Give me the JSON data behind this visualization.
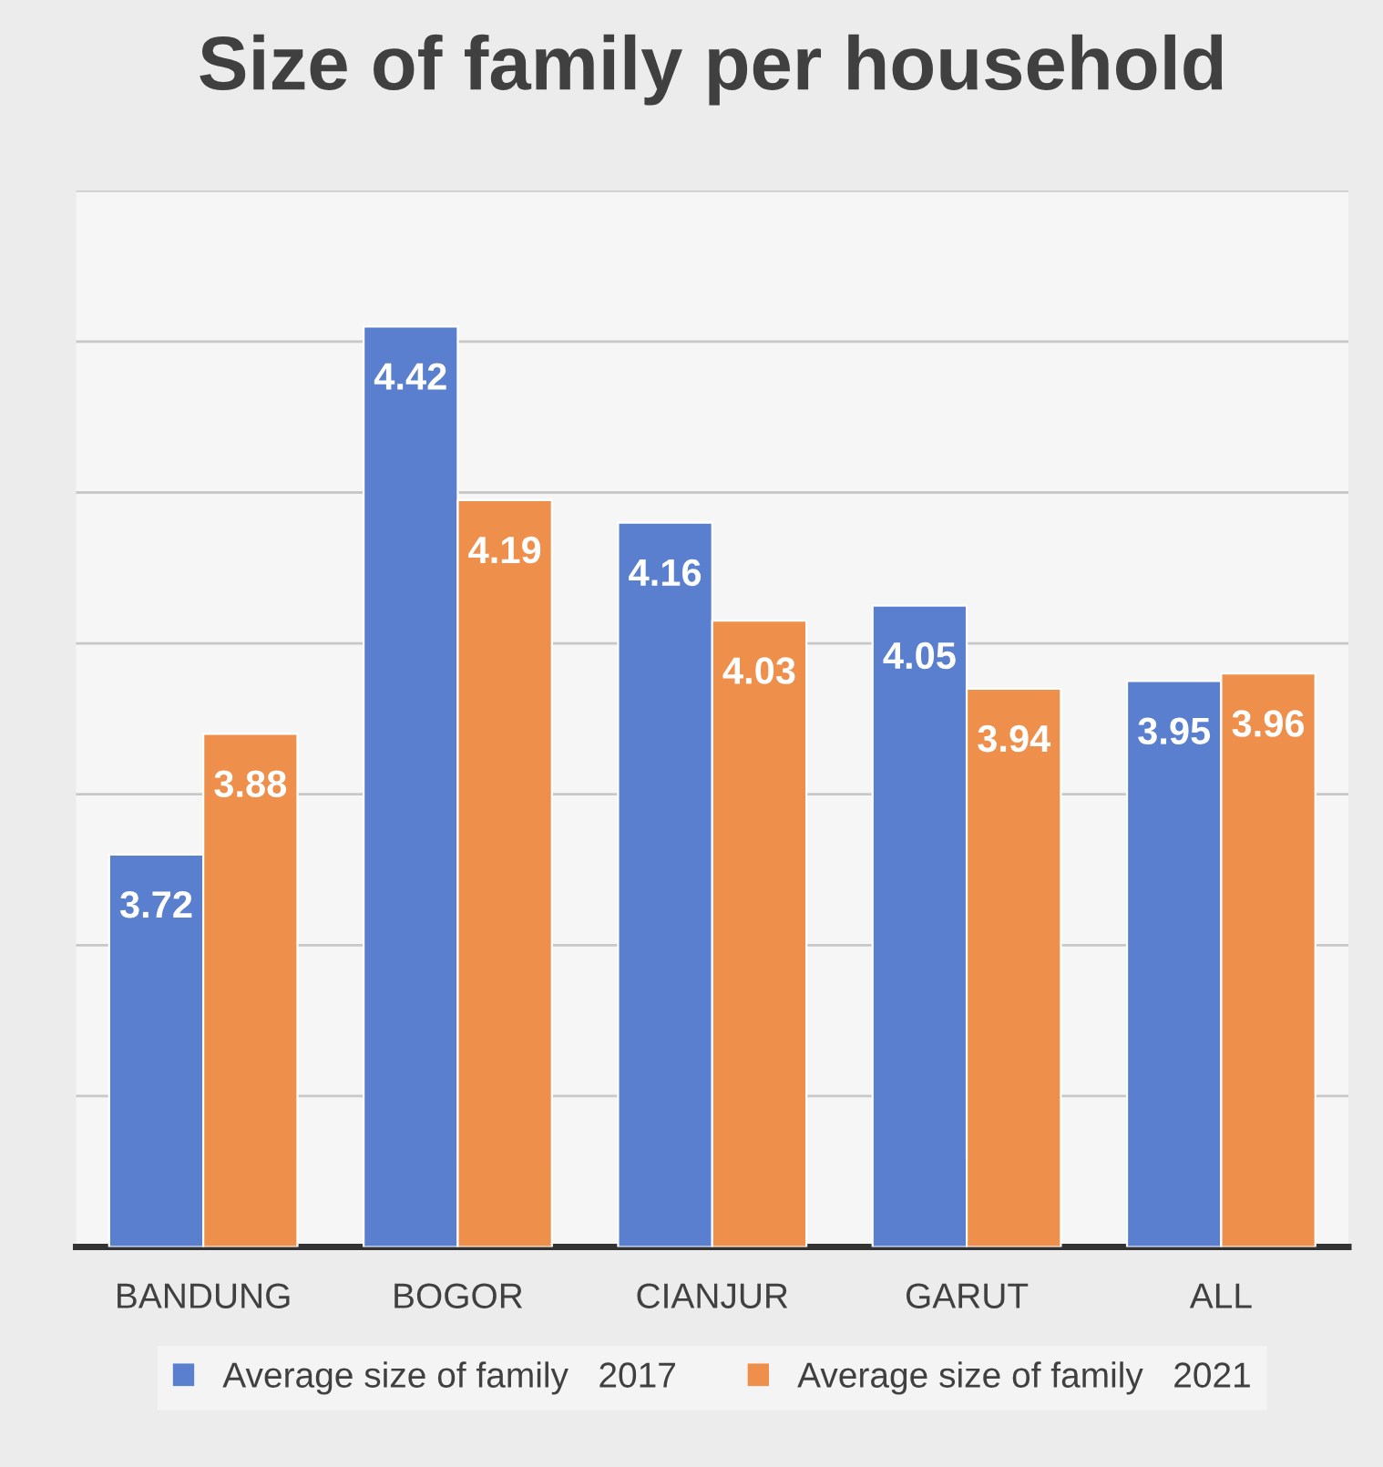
{
  "chart_data": {
    "type": "bar",
    "title": "Size of family per household",
    "categories": [
      "BANDUNG",
      "BOGOR",
      "CIANJUR",
      "GARUT",
      "ALL"
    ],
    "series": [
      {
        "name": "Average size of family   2017",
        "color": "#5b7fcf",
        "values": [
          3.72,
          4.42,
          4.16,
          4.05,
          3.95
        ]
      },
      {
        "name": "Average size of family   2021",
        "color": "#ef8f4c",
        "values": [
          3.88,
          4.19,
          4.03,
          3.94,
          3.96
        ]
      }
    ],
    "ylim": [
      3.2,
      4.6
    ],
    "yticks": [
      {
        "value": 3.2,
        "label": null
      },
      {
        "value": 3.4,
        "label": null
      },
      {
        "value": 3.6,
        "label": null
      },
      {
        "value": 3.8,
        "label": null
      },
      {
        "value": 4.0,
        "label": null
      },
      {
        "value": 4.2,
        "label": null
      },
      {
        "value": 4.4,
        "label": null
      },
      {
        "value": 4.6,
        "label": null
      }
    ],
    "grid": "y",
    "legend": "bottom",
    "data_labels": true
  }
}
